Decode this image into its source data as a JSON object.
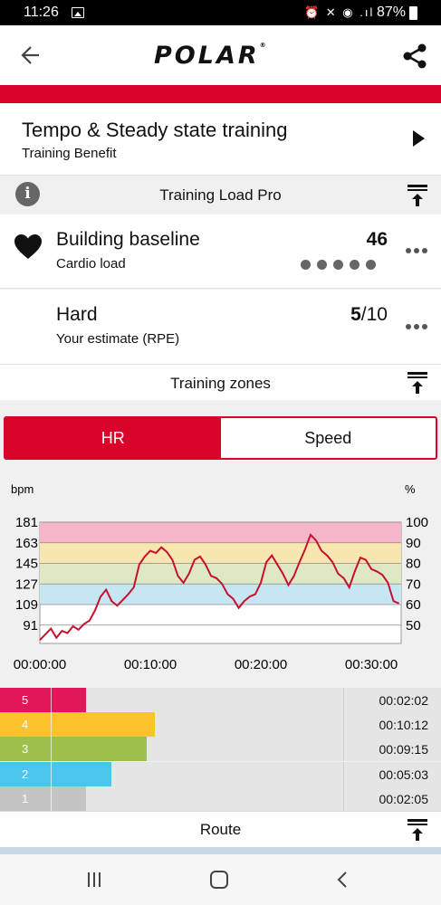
{
  "status": {
    "time": "11:26",
    "battery": "87%",
    "system_icons": "⏰ ✕ ◉ .ıl"
  },
  "app": {
    "brand": "POLAR"
  },
  "benefit": {
    "title": "Tempo & Steady state training",
    "subtitle": "Training Benefit"
  },
  "training_load": {
    "header": "Training Load Pro",
    "cardio": {
      "title": "Building baseline",
      "subtitle": "Cardio load",
      "value": "46",
      "dots_total": 5,
      "dots_filled": 0
    },
    "rpe": {
      "title": "Hard",
      "subtitle": "Your estimate (RPE)",
      "value": "5",
      "value_suffix": "/10"
    }
  },
  "zones_header": "Training zones",
  "tabs": {
    "hr": "HR",
    "speed": "Speed",
    "active": "HR"
  },
  "chart_data": {
    "type": "line",
    "ylabel_left": "bpm",
    "ylabel_right": "%",
    "y_ticks_left": [
      "181",
      "163",
      "145",
      "127",
      "109",
      "91"
    ],
    "y_ticks_right": [
      "100",
      "90",
      "80",
      "70",
      "60",
      "50"
    ],
    "x_ticks": [
      "00:00:00",
      "00:10:00",
      "00:20:00",
      "00:30:00"
    ],
    "xlim_minutes": [
      0,
      32.7
    ],
    "ylim_bpm": [
      75,
      181
    ],
    "zone_bands_bpm": [
      {
        "zone": 5,
        "from": 163,
        "to": 181,
        "color": "#f4b6c8"
      },
      {
        "zone": 4,
        "from": 145,
        "to": 163,
        "color": "#f8e6b0"
      },
      {
        "zone": 3,
        "from": 127,
        "to": 145,
        "color": "#dfe8c4"
      },
      {
        "zone": 2,
        "from": 109,
        "to": 127,
        "color": "#c6e6f2"
      }
    ],
    "line_color": "#c8102e",
    "series": [
      {
        "x_minutes": [
          0,
          0.5,
          1,
          1.5,
          2,
          2.5,
          3,
          3.5,
          4,
          4.5,
          5,
          5.5,
          6,
          6.5,
          7,
          7.5,
          8,
          8.5,
          9,
          9.5,
          10,
          10.5,
          11,
          11.5,
          12,
          12.5,
          13,
          13.5,
          14,
          14.5,
          15,
          15.5,
          16,
          16.5,
          17,
          17.5,
          18,
          18.5,
          19,
          19.5,
          20,
          20.5,
          21,
          21.5,
          22,
          22.5,
          23,
          23.5,
          24,
          24.5,
          25,
          25.5,
          26,
          26.5,
          27,
          27.5,
          28,
          28.5,
          29,
          29.5,
          30,
          30.5,
          31,
          31.5,
          32,
          32.5
        ],
        "bpm": [
          78,
          83,
          88,
          80,
          86,
          84,
          90,
          87,
          92,
          95,
          104,
          116,
          122,
          112,
          108,
          113,
          118,
          124,
          144,
          151,
          156,
          154,
          159,
          155,
          148,
          134,
          128,
          136,
          148,
          151,
          144,
          134,
          132,
          127,
          118,
          114,
          106,
          112,
          116,
          118,
          128,
          146,
          152,
          144,
          136,
          126,
          134,
          146,
          157,
          170,
          165,
          156,
          152,
          146,
          136,
          132,
          124,
          138,
          150,
          148,
          140,
          138,
          135,
          128,
          112,
          110
        ]
      }
    ]
  },
  "zone_times": [
    {
      "zone": "5",
      "duration": "00:02:02",
      "color": "#e2175a",
      "fraction": 0.065
    },
    {
      "zone": "4",
      "duration": "00:10:12",
      "color": "#fcc32c",
      "fraction": 0.329
    },
    {
      "zone": "3",
      "duration": "00:09:15",
      "color": "#9dc04c",
      "fraction": 0.298
    },
    {
      "zone": "2",
      "duration": "00:05:03",
      "color": "#4bc5ec",
      "fraction": 0.163
    },
    {
      "zone": "1",
      "duration": "00:02:05",
      "color": "#c4c4c4",
      "fraction": 0.067
    }
  ],
  "route": {
    "header": "Route"
  }
}
